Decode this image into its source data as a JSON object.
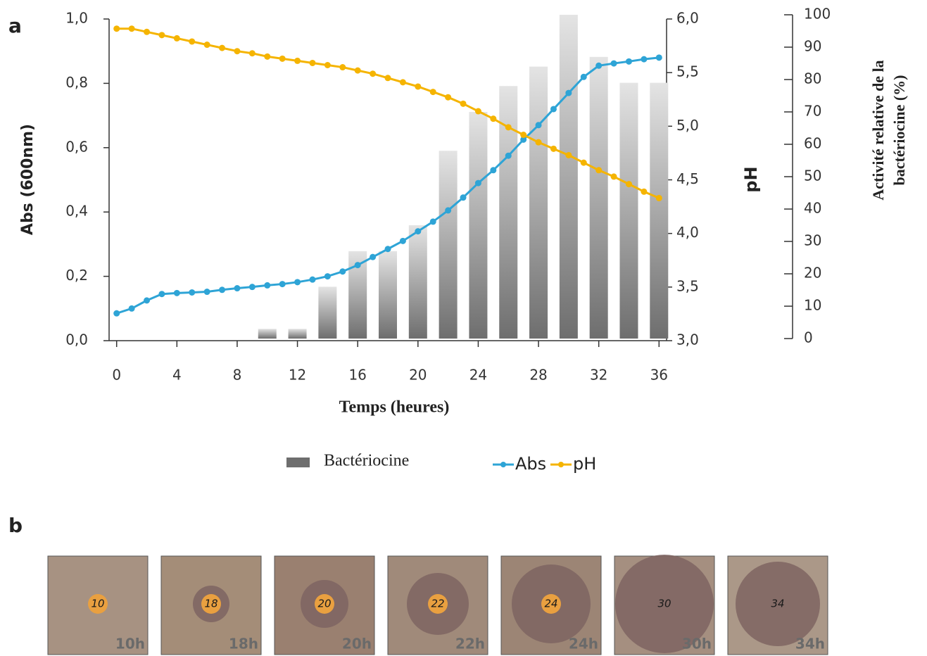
{
  "panel_labels": [
    "a",
    "b"
  ],
  "chart_data": {
    "type": "combo",
    "x_label": "Temps (heures)",
    "y_label": "Abs (600nm)",
    "y2_label": "pH",
    "y3_label": [
      "Activité relative de la",
      "bactériocine (%)"
    ],
    "xlim": [
      -0.5,
      36.5
    ],
    "xticks": [
      0,
      4,
      8,
      12,
      16,
      20,
      24,
      28,
      32,
      36
    ],
    "ylim": [
      0,
      1
    ],
    "yticks": [
      {
        "value": 0,
        "label": "0,0"
      },
      {
        "value": 0.2,
        "label": "0,2"
      },
      {
        "value": 0.4,
        "label": "0,4"
      },
      {
        "value": 0.6,
        "label": "0,6"
      },
      {
        "value": 0.8,
        "label": "0,8"
      },
      {
        "value": 1,
        "label": "1,0"
      }
    ],
    "y2lim": [
      3,
      6
    ],
    "y2ticks": [
      {
        "value": 3,
        "label": "3,0"
      },
      {
        "value": 3.5,
        "label": "3,5"
      },
      {
        "value": 4,
        "label": "4,0"
      },
      {
        "value": 4.5,
        "label": "4,5"
      },
      {
        "value": 5,
        "label": "5,0"
      },
      {
        "value": 5.5,
        "label": "5,5"
      },
      {
        "value": 6,
        "label": "6,0"
      }
    ],
    "y3lim": [
      0,
      100
    ],
    "y3ticks": [
      0,
      10,
      20,
      30,
      40,
      50,
      60,
      70,
      80,
      90,
      100
    ],
    "series": [
      {
        "name": "Bactériocine",
        "type": "bar",
        "axis": "y3",
        "color": "#6e6e6e",
        "x": [
          10,
          12,
          14,
          16,
          18,
          20,
          22,
          24,
          26,
          28,
          30,
          32,
          34,
          36
        ],
        "values": [
          3,
          3,
          16,
          27,
          27,
          35,
          58,
          70,
          78,
          84,
          100,
          87,
          79,
          79
        ]
      },
      {
        "name": "Abs",
        "type": "line",
        "axis": "y",
        "color": "#2ea4d6",
        "x": [
          0,
          1,
          2,
          3,
          4,
          5,
          6,
          7,
          8,
          9,
          10,
          11,
          12,
          13,
          14,
          15,
          16,
          17,
          18,
          19,
          20,
          21,
          22,
          23,
          24,
          25,
          26,
          27,
          28,
          29,
          30,
          31,
          32,
          33,
          34,
          35,
          36
        ],
        "values": [
          0.085,
          0.1,
          0.125,
          0.145,
          0.148,
          0.15,
          0.152,
          0.158,
          0.163,
          0.167,
          0.172,
          0.176,
          0.182,
          0.19,
          0.2,
          0.215,
          0.235,
          0.26,
          0.285,
          0.31,
          0.34,
          0.37,
          0.405,
          0.445,
          0.49,
          0.53,
          0.575,
          0.625,
          0.67,
          0.72,
          0.77,
          0.82,
          0.855,
          0.862,
          0.868,
          0.875,
          0.88
        ]
      },
      {
        "name": "pH",
        "type": "line",
        "axis": "y2",
        "color": "#f5b400",
        "x": [
          0,
          1,
          2,
          3,
          4,
          5,
          6,
          7,
          8,
          9,
          10,
          11,
          12,
          13,
          14,
          15,
          16,
          17,
          18,
          19,
          20,
          21,
          22,
          23,
          24,
          25,
          26,
          27,
          28,
          29,
          30,
          31,
          32,
          33,
          34,
          35,
          36
        ],
        "values": [
          5.91,
          5.91,
          5.88,
          5.85,
          5.82,
          5.79,
          5.76,
          5.73,
          5.7,
          5.68,
          5.65,
          5.63,
          5.61,
          5.59,
          5.57,
          5.55,
          5.52,
          5.49,
          5.45,
          5.41,
          5.37,
          5.32,
          5.27,
          5.21,
          5.14,
          5.07,
          4.99,
          4.92,
          4.85,
          4.79,
          4.73,
          4.66,
          4.59,
          4.53,
          4.46,
          4.39,
          4.33
        ]
      }
    ]
  },
  "photos": {
    "labels": [
      "10h",
      "18h",
      "20h",
      "22h",
      "24h",
      "30h",
      "34h"
    ],
    "disk_labels": [
      "10",
      "18",
      "20",
      "22",
      "24",
      "30",
      "34"
    ]
  }
}
